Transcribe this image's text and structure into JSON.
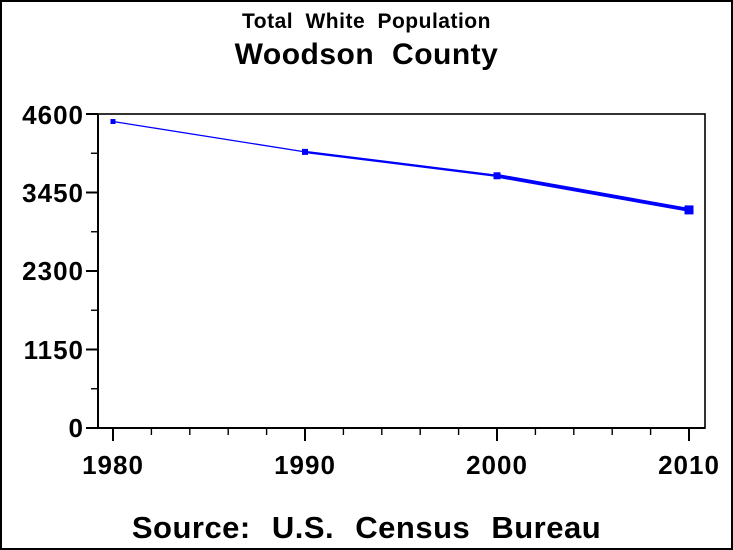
{
  "chart_data": {
    "type": "line",
    "title": "Total White Population",
    "subtitle": "Woodson County",
    "footer": "Source: U.S. Census Bureau",
    "series": [
      {
        "name": "Total White Population",
        "x": [
          1980,
          1990,
          2000,
          2010
        ],
        "values": [
          4490,
          4045,
          3695,
          3195
        ]
      }
    ],
    "xlim": [
      1980,
      2010
    ],
    "ylim": [
      0,
      4600
    ],
    "x_major_ticks": [
      1980,
      1990,
      2000,
      2010
    ],
    "x_tick_labels": [
      "1980",
      "1990",
      "2000",
      "2010"
    ],
    "x_minor_tick_step_years": 2,
    "y_major_ticks": [
      0,
      1150,
      2300,
      3450,
      4600
    ],
    "y_tick_labels": [
      "0",
      "1150",
      "2300",
      "3450",
      "4600"
    ],
    "y_minor_ticks": [
      575,
      1725,
      2875,
      4025
    ],
    "xlabel": "",
    "ylabel": "",
    "grid": false,
    "legend": "none",
    "line_color": "#0000ff",
    "axis_color": "#000000",
    "text_color": "#000000",
    "background_color": "#ffffff",
    "marker": "square",
    "line_width_trend": "thin at 1980 tapering thicker toward 2010"
  }
}
